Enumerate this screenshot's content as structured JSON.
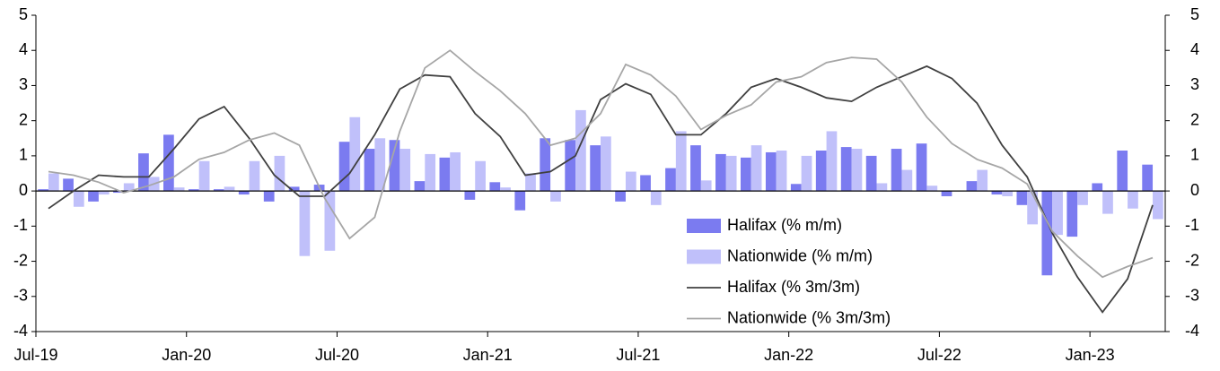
{
  "chart_data": {
    "type": "bar",
    "categories": [
      "Jul-19",
      null,
      null,
      null,
      null,
      null,
      "Jan-20",
      null,
      null,
      null,
      null,
      null,
      "Jul-20",
      null,
      null,
      null,
      null,
      null,
      "Jan-21",
      null,
      null,
      null,
      null,
      null,
      "Jul-21",
      null,
      null,
      null,
      null,
      null,
      "Jan-22",
      null,
      null,
      null,
      null,
      null,
      "Jul-22",
      null,
      null,
      null,
      null,
      null,
      "Jan-23",
      null,
      null
    ],
    "series": [
      {
        "name": "Halifax (% m/m)",
        "type": "bar",
        "color": "#7b7bf0",
        "values": [
          0.05,
          0.35,
          -0.3,
          -0.05,
          1.07,
          1.6,
          0.05,
          0.05,
          -0.1,
          -0.3,
          0.12,
          0.18,
          1.4,
          1.2,
          1.45,
          0.28,
          0.95,
          -0.25,
          0.25,
          -0.55,
          1.5,
          1.45,
          1.3,
          -0.3,
          0.45,
          0.65,
          1.3,
          1.05,
          0.95,
          1.1,
          0.2,
          1.15,
          1.25,
          1.0,
          1.2,
          1.35,
          -0.15,
          0.28,
          -0.1,
          -0.4,
          -2.4,
          -1.3,
          0.22,
          1.15,
          0.75
        ]
      },
      {
        "name": "Nationwide (% m/m)",
        "type": "bar",
        "color": "#c0c0fa",
        "values": [
          0.5,
          -0.45,
          -0.1,
          0.22,
          0.4,
          0.1,
          0.85,
          0.12,
          0.85,
          1.0,
          -1.85,
          -1.7,
          2.1,
          1.5,
          1.2,
          1.05,
          1.1,
          0.85,
          0.1,
          0.5,
          -0.3,
          2.3,
          1.55,
          0.55,
          -0.4,
          1.7,
          0.3,
          1.0,
          1.3,
          1.15,
          1.0,
          1.7,
          1.2,
          0.22,
          0.6,
          0.15,
          0.0,
          0.6,
          -0.15,
          -0.95,
          -1.25,
          -0.4,
          -0.65,
          -0.5,
          -0.8
        ]
      },
      {
        "name": "Halifax (% 3m/3m)",
        "type": "line",
        "color": "#404040",
        "values": [
          -0.5,
          0.0,
          0.45,
          0.4,
          0.4,
          1.2,
          2.05,
          2.4,
          1.5,
          0.45,
          -0.15,
          -0.15,
          0.5,
          1.6,
          2.9,
          3.3,
          3.25,
          2.2,
          1.55,
          0.45,
          0.55,
          1.0,
          2.6,
          3.05,
          2.75,
          1.6,
          1.6,
          2.2,
          2.95,
          3.2,
          2.95,
          2.65,
          2.55,
          2.95,
          3.25,
          3.55,
          3.2,
          2.5,
          1.3,
          0.4,
          -1.2,
          -2.45,
          -3.45,
          -2.5,
          -0.4
        ]
      },
      {
        "name": "Nationwide (% 3m/3m)",
        "type": "line",
        "color": "#a6a6a6",
        "values": [
          0.55,
          0.45,
          0.25,
          -0.05,
          0.15,
          0.4,
          0.9,
          1.1,
          1.45,
          1.65,
          1.3,
          -0.2,
          -1.35,
          -0.75,
          1.7,
          3.5,
          4.0,
          3.4,
          2.85,
          2.2,
          1.3,
          1.5,
          2.2,
          3.6,
          3.3,
          2.7,
          1.75,
          2.15,
          2.45,
          3.1,
          3.25,
          3.65,
          3.8,
          3.75,
          3.1,
          2.1,
          1.35,
          0.9,
          0.65,
          0.2,
          -1.15,
          -1.85,
          -2.45,
          -2.15,
          -1.9
        ]
      }
    ],
    "ylim": [
      -4,
      5
    ],
    "yticks": [
      -4,
      -3,
      -2,
      -1,
      0,
      1,
      2,
      3,
      4,
      5
    ],
    "y2lim": [
      -4,
      5
    ],
    "y2ticks": [
      -4,
      -3,
      -2,
      -1,
      0,
      1,
      2,
      3,
      4,
      5
    ]
  }
}
